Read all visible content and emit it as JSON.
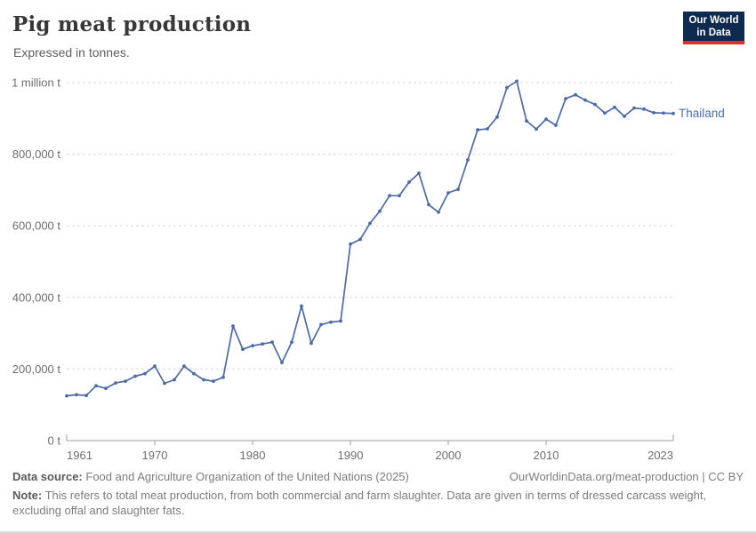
{
  "header": {
    "title": "Pig meat production",
    "subtitle": "Expressed in tonnes.",
    "logo": {
      "line1": "Our World",
      "line2": "in Data",
      "bg_color": "#0e2a4e",
      "accent_color": "#dc2f2f"
    }
  },
  "chart_data": {
    "type": "line",
    "title": "Pig meat production",
    "subtitle": "Expressed in tonnes.",
    "entity_label": "Thailand",
    "unit": "tonnes",
    "line_color": "#4d6aa8",
    "entity_label_color": "#4e6fb5",
    "axis_text_color": "#6e6e6e",
    "gridline_color": "#dadada",
    "axis_line_color": "#9c9c9c",
    "grid": true,
    "legend_position": "end-of-line label",
    "xlim": [
      1961,
      2023
    ],
    "ylim": [
      0,
      1000000
    ],
    "x_ticks": [
      {
        "value": 1961,
        "label": "1961"
      },
      {
        "value": 1970,
        "label": "1970"
      },
      {
        "value": 1980,
        "label": "1980"
      },
      {
        "value": 1990,
        "label": "1990"
      },
      {
        "value": 2000,
        "label": "2000"
      },
      {
        "value": 2010,
        "label": "2010"
      },
      {
        "value": 2023,
        "label": "2023"
      }
    ],
    "y_ticks": [
      {
        "value": 0,
        "label": "0 t"
      },
      {
        "value": 200000,
        "label": "200,000 t"
      },
      {
        "value": 400000,
        "label": "400,000 t"
      },
      {
        "value": 600000,
        "label": "600,000 t"
      },
      {
        "value": 800000,
        "label": "800,000 t"
      },
      {
        "value": 1000000,
        "label": "1 million t"
      }
    ],
    "years": [
      1961,
      1962,
      1963,
      1964,
      1965,
      1966,
      1967,
      1968,
      1969,
      1970,
      1971,
      1972,
      1973,
      1974,
      1975,
      1976,
      1977,
      1978,
      1979,
      1980,
      1981,
      1982,
      1983,
      1984,
      1985,
      1986,
      1987,
      1988,
      1989,
      1990,
      1991,
      1992,
      1993,
      1994,
      1995,
      1996,
      1997,
      1998,
      1999,
      2000,
      2001,
      2002,
      2003,
      2004,
      2005,
      2006,
      2007,
      2008,
      2009,
      2010,
      2011,
      2012,
      2013,
      2014,
      2015,
      2016,
      2017,
      2018,
      2019,
      2020,
      2021,
      2022,
      2023
    ],
    "series": [
      {
        "name": "Thailand",
        "values": [
          125000,
          128000,
          126000,
          153000,
          146000,
          161000,
          166000,
          180000,
          187000,
          208000,
          160000,
          170000,
          208000,
          187000,
          170000,
          166000,
          177000,
          320000,
          255000,
          265000,
          270000,
          275000,
          218000,
          275000,
          376000,
          272000,
          324000,
          331000,
          334000,
          549000,
          562000,
          607000,
          641000,
          684000,
          684000,
          722000,
          747000,
          659000,
          638000,
          692000,
          702000,
          784000,
          868000,
          871000,
          904000,
          986000,
          1004000,
          893000,
          870000,
          898000,
          881000,
          955000,
          966000,
          951000,
          939000,
          915000,
          931000,
          906000,
          929000,
          926000,
          916000,
          915000,
          914000
        ]
      }
    ]
  },
  "footer": {
    "datasource_label": "Data source:",
    "datasource_text": "Food and Agriculture Organization of the United Nations (2025)",
    "link_text": "OurWorldinData.org/meat-production | CC BY",
    "note_label": "Note:",
    "note_text": "This refers to total meat production, from both commercial and farm slaughter. Data are given in terms of dressed carcass weight, excluding offal and slaughter fats."
  }
}
